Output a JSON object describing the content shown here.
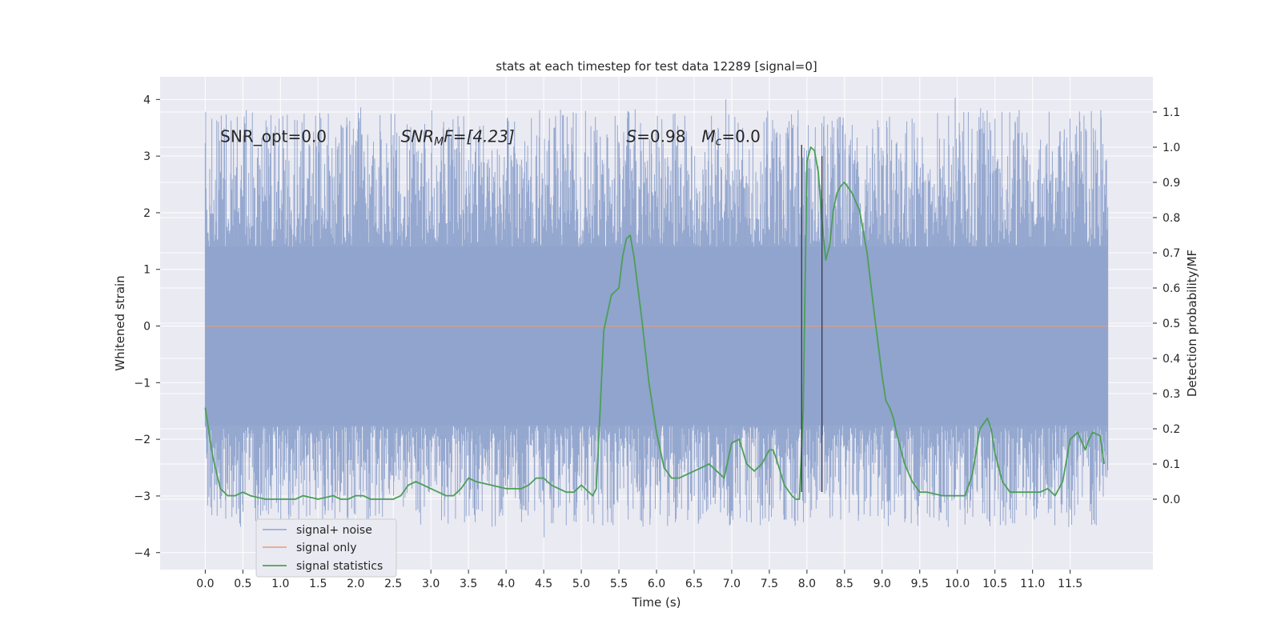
{
  "chart_data": {
    "type": "line",
    "title": "stats at each timestep for test data 12289 [signal=0]",
    "xlabel": "Time (s)",
    "ylabel_left": "Whitened strain",
    "ylabel_right": "Detection probability/MF",
    "xlim": [
      -0.6,
      12.6
    ],
    "ylim_left": [
      -4.3,
      4.4
    ],
    "ylim_right": [
      -0.2,
      1.2
    ],
    "x_ticks": [
      0.0,
      0.5,
      1.0,
      1.5,
      2.0,
      2.5,
      3.0,
      3.5,
      4.0,
      4.5,
      5.0,
      5.5,
      6.0,
      6.5,
      7.0,
      7.5,
      8.0,
      8.5,
      9.0,
      9.5,
      10.0,
      10.5,
      11.0,
      11.5
    ],
    "x_tick_labels": [
      "0.0",
      "0.5",
      "1.0",
      "1.5",
      "2.0",
      "2.5",
      "3.0",
      "3.5",
      "4.0",
      "4.5",
      "5.0",
      "5.5",
      "6.0",
      "6.5",
      "7.0",
      "7.5",
      "8.0",
      "8.5",
      "9.0",
      "9.5",
      "10.0",
      "10.5",
      "11.0",
      "11.5"
    ],
    "y_left_ticks": [
      4,
      3,
      2,
      1,
      0,
      -1,
      -2,
      -3,
      -4
    ],
    "y_left_tick_labels": [
      "4",
      "3",
      "2",
      "1",
      "0",
      "−1",
      "−2",
      "−3",
      "−4"
    ],
    "y_right_ticks": [
      1.1,
      1.0,
      0.9,
      0.8,
      0.7,
      0.6,
      0.5,
      0.4,
      0.3,
      0.2,
      0.1,
      0.0
    ],
    "y_right_tick_labels": [
      "1.1",
      "1.0",
      "0.9",
      "0.8",
      "0.7",
      "0.6",
      "0.5",
      "0.4",
      "0.3",
      "0.2",
      "0.1",
      "0.0"
    ],
    "grid": true,
    "legend_placement": "lower-left",
    "colors": {
      "background": "#eaeaf2",
      "grid": "#ffffff",
      "signal_noise": "#8fa3cc",
      "signal_only": "#e39b7b",
      "statistics": "#4c9f57",
      "markers": "#40404d"
    },
    "series": [
      {
        "name": "signal+ noise",
        "axis": "left",
        "kind": "noise-band",
        "t_range": [
          0.0,
          12.0
        ],
        "dense_band": [
          -1.75,
          1.4
        ],
        "peak_range": [
          -3.75,
          4.1
        ]
      },
      {
        "name": "signal only",
        "axis": "left",
        "x": [
          0.0,
          12.0
        ],
        "y": [
          0.0,
          0.0
        ]
      },
      {
        "name": "signal statistics",
        "axis": "right",
        "x": [
          0.0,
          0.1,
          0.2,
          0.3,
          0.4,
          0.5,
          0.6,
          0.8,
          1.0,
          1.1,
          1.2,
          1.3,
          1.5,
          1.7,
          1.8,
          1.9,
          2.0,
          2.1,
          2.2,
          2.4,
          2.5,
          2.6,
          2.7,
          2.8,
          3.0,
          3.1,
          3.2,
          3.3,
          3.4,
          3.5,
          3.6,
          3.8,
          4.0,
          4.1,
          4.2,
          4.3,
          4.4,
          4.5,
          4.6,
          4.7,
          4.8,
          4.9,
          5.0,
          5.1,
          5.15,
          5.2,
          5.25,
          5.3,
          5.4,
          5.5,
          5.55,
          5.6,
          5.65,
          5.7,
          5.8,
          5.9,
          6.0,
          6.1,
          6.2,
          6.3,
          6.4,
          6.5,
          6.6,
          6.7,
          6.8,
          6.9,
          7.0,
          7.1,
          7.2,
          7.3,
          7.4,
          7.5,
          7.55,
          7.6,
          7.7,
          7.8,
          7.85,
          7.9,
          7.95,
          8.0,
          8.05,
          8.1,
          8.15,
          8.2,
          8.25,
          8.3,
          8.35,
          8.4,
          8.45,
          8.5,
          8.6,
          8.7,
          8.8,
          8.9,
          9.0,
          9.05,
          9.1,
          9.15,
          9.2,
          9.3,
          9.4,
          9.5,
          9.6,
          9.8,
          10.0,
          10.1,
          10.2,
          10.3,
          10.4,
          10.45,
          10.5,
          10.6,
          10.7,
          10.8,
          10.9,
          11.0,
          11.1,
          11.2,
          11.3,
          11.4,
          11.5,
          11.6,
          11.7,
          11.75,
          11.8,
          11.9,
          11.95
        ],
        "y": [
          0.26,
          0.12,
          0.03,
          0.01,
          0.01,
          0.02,
          0.01,
          0.0,
          0.0,
          0.0,
          0.0,
          0.01,
          0.0,
          0.01,
          0.0,
          0.0,
          0.01,
          0.01,
          0.0,
          0.0,
          0.0,
          0.01,
          0.04,
          0.05,
          0.03,
          0.02,
          0.01,
          0.01,
          0.03,
          0.06,
          0.05,
          0.04,
          0.03,
          0.03,
          0.03,
          0.04,
          0.06,
          0.06,
          0.04,
          0.03,
          0.02,
          0.02,
          0.04,
          0.02,
          0.01,
          0.03,
          0.25,
          0.48,
          0.58,
          0.6,
          0.69,
          0.74,
          0.75,
          0.69,
          0.52,
          0.33,
          0.19,
          0.09,
          0.06,
          0.06,
          0.07,
          0.08,
          0.09,
          0.1,
          0.08,
          0.06,
          0.16,
          0.17,
          0.1,
          0.08,
          0.1,
          0.14,
          0.14,
          0.11,
          0.04,
          0.01,
          0.0,
          0.0,
          0.25,
          0.96,
          1.0,
          0.99,
          0.93,
          0.79,
          0.68,
          0.72,
          0.82,
          0.87,
          0.89,
          0.9,
          0.87,
          0.82,
          0.7,
          0.52,
          0.35,
          0.28,
          0.26,
          0.23,
          0.18,
          0.1,
          0.05,
          0.02,
          0.02,
          0.01,
          0.01,
          0.01,
          0.07,
          0.2,
          0.23,
          0.2,
          0.13,
          0.05,
          0.02,
          0.02,
          0.02,
          0.02,
          0.02,
          0.03,
          0.01,
          0.05,
          0.17,
          0.19,
          0.14,
          0.17,
          0.19,
          0.18,
          0.1
        ]
      }
    ],
    "vertical_markers": [
      {
        "x": 7.93,
        "y_top": 3.2,
        "y_bottom": -2.93
      },
      {
        "x": 8.2,
        "y_top": 3.0,
        "y_bottom": -2.93
      }
    ],
    "annotations": [
      {
        "text": "SNR_opt=0.0",
        "x": 0.2,
        "y": 3.25,
        "italic": false
      },
      {
        "text": "SNR",
        "sub": "M",
        "tail": "F=[4.23]",
        "x": 2.6,
        "y": 3.25,
        "italic": true
      },
      {
        "text": "S",
        "tail": "=0.98",
        "x": 5.6,
        "y": 3.25,
        "italic": true
      },
      {
        "text": "M",
        "sub": "c",
        "tail": "=0.0",
        "x": 6.6,
        "y": 3.25,
        "italic": true
      }
    ]
  }
}
